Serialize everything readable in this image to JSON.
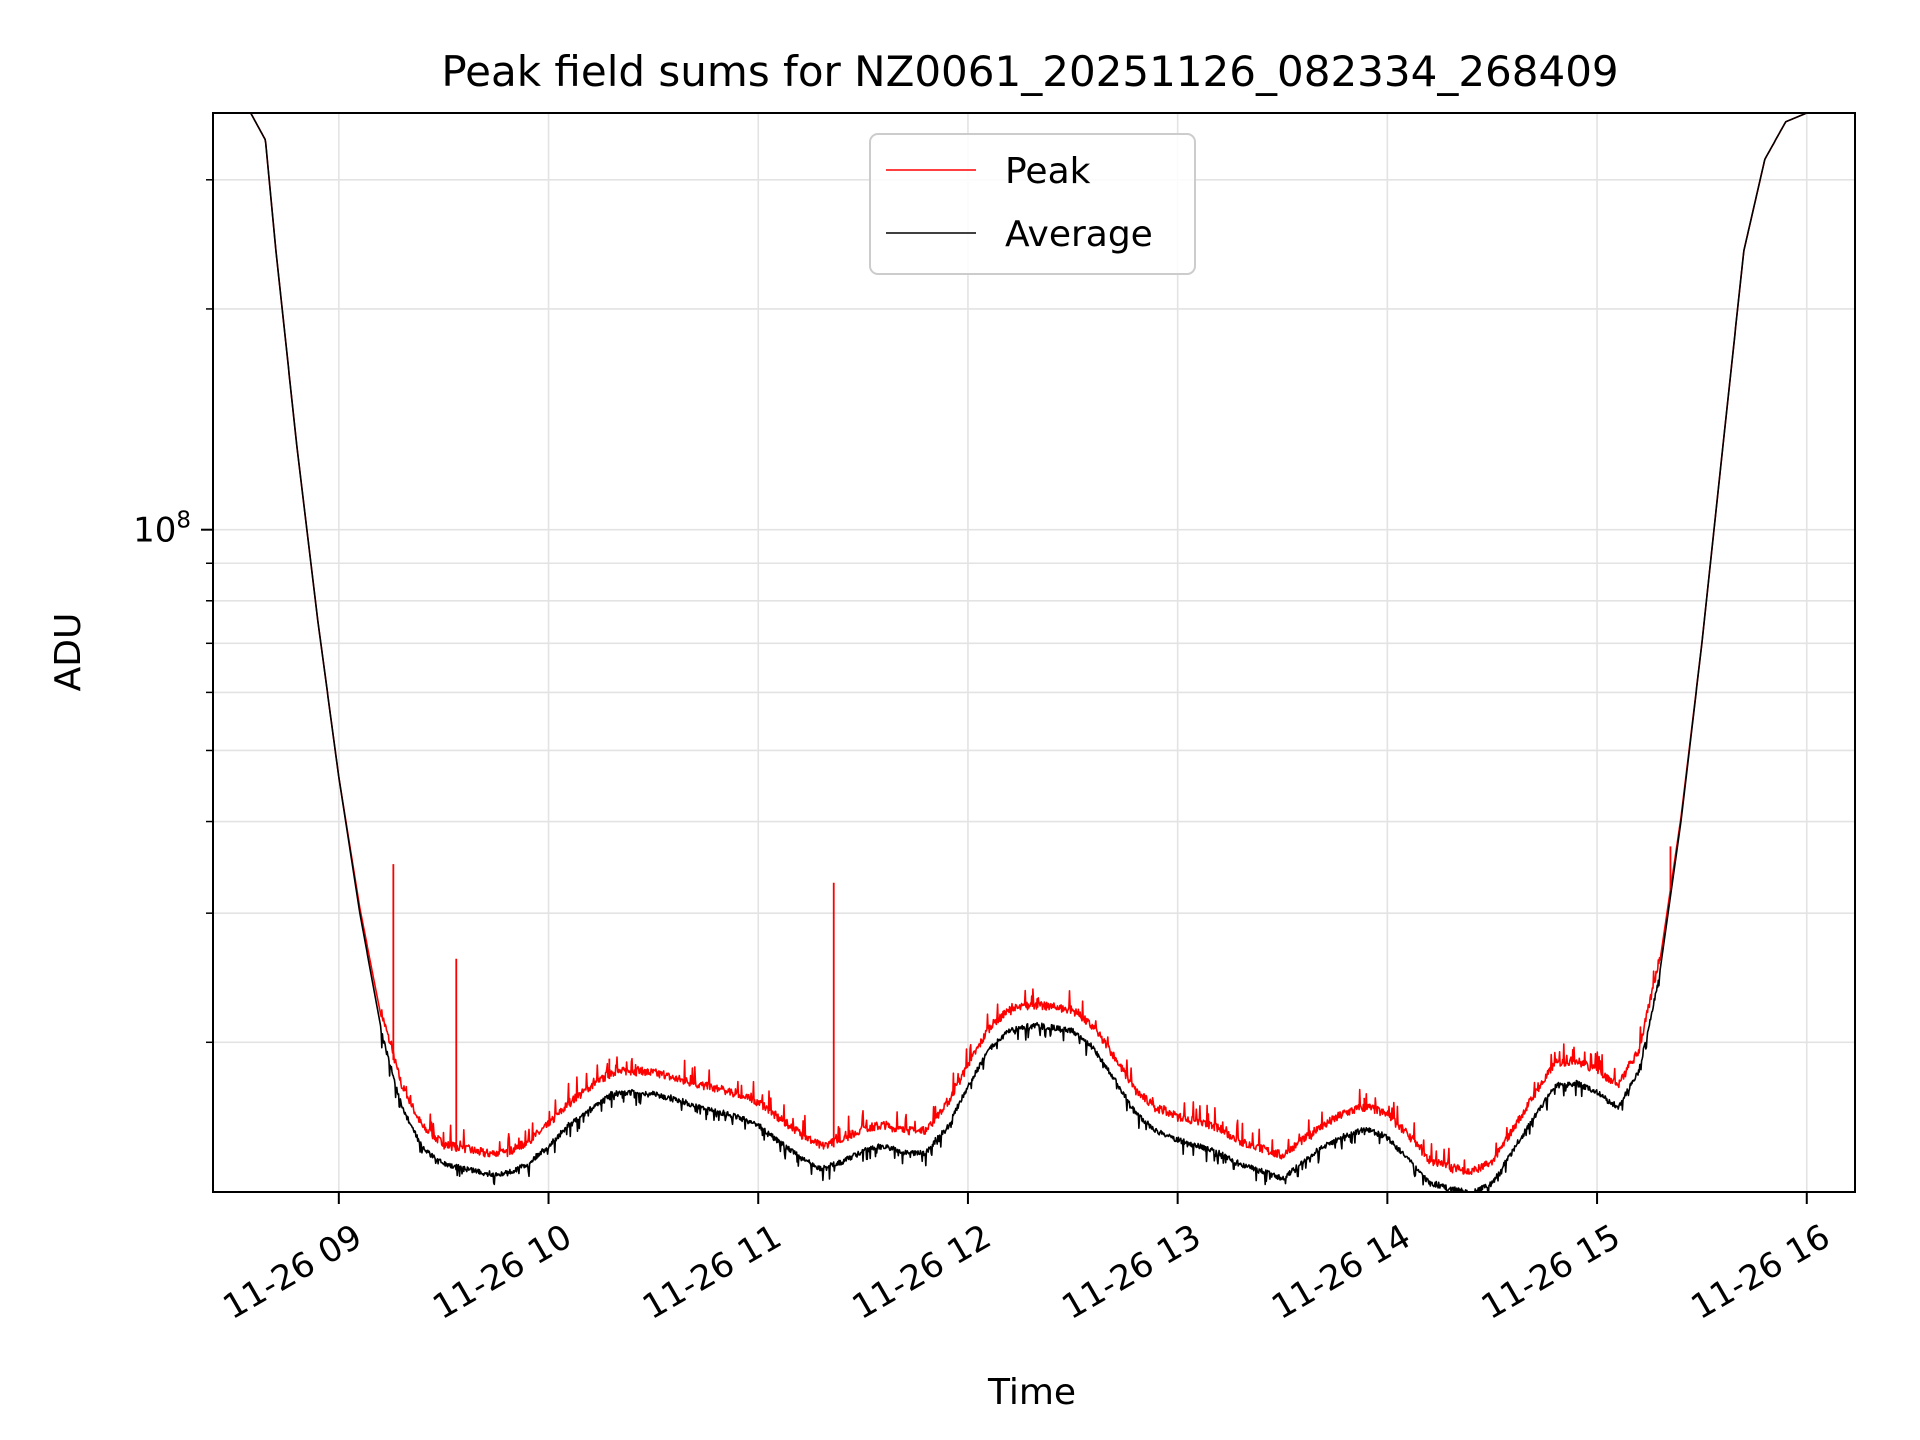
{
  "chart_data": {
    "type": "line",
    "title": "Peak field sums for NZ0061_20251126_082334_268409",
    "xlabel": "Time",
    "ylabel": "ADU",
    "y_scale": "log",
    "y_tick_label": {
      "base": "10",
      "exp": "8",
      "value": 100000000
    },
    "ylim": [
      12500000,
      370000000
    ],
    "xlim_hours": [
      8.4,
      16.23
    ],
    "x_ticks": [
      {
        "label": "11-26 09",
        "hour": 9
      },
      {
        "label": "11-26 10",
        "hour": 10
      },
      {
        "label": "11-26 11",
        "hour": 11
      },
      {
        "label": "11-26 12",
        "hour": 12
      },
      {
        "label": "11-26 13",
        "hour": 13
      },
      {
        "label": "11-26 14",
        "hour": 14
      },
      {
        "label": "11-26 15",
        "hour": 15
      },
      {
        "label": "11-26 16",
        "hour": 16
      }
    ],
    "y_minor_ticks": [
      20000000,
      30000000,
      40000000,
      50000000,
      60000000,
      70000000,
      80000000,
      90000000,
      200000000,
      300000000
    ],
    "grid": true,
    "legend": {
      "position": "top-center",
      "entries": [
        "Peak",
        "Average"
      ]
    },
    "series": [
      {
        "name": "Average",
        "color": "#000000",
        "x_hours": [
          8.58,
          8.65,
          8.7,
          8.8,
          8.9,
          9.0,
          9.1,
          9.2,
          9.3,
          9.4,
          9.5,
          9.6,
          9.7,
          9.8,
          9.9,
          10.0,
          10.1,
          10.2,
          10.3,
          10.4,
          10.5,
          10.6,
          10.7,
          10.8,
          10.9,
          11.0,
          11.1,
          11.2,
          11.3,
          11.4,
          11.5,
          11.6,
          11.7,
          11.8,
          11.9,
          12.0,
          12.1,
          12.2,
          12.3,
          12.4,
          12.5,
          12.6,
          12.7,
          12.8,
          12.9,
          13.0,
          13.1,
          13.2,
          13.3,
          13.4,
          13.5,
          13.6,
          13.7,
          13.8,
          13.9,
          14.0,
          14.1,
          14.2,
          14.3,
          14.4,
          14.5,
          14.6,
          14.7,
          14.8,
          14.9,
          15.0,
          15.1,
          15.2,
          15.3,
          15.4,
          15.5,
          15.6,
          15.7,
          15.8,
          15.9,
          16.0,
          16.0
        ],
        "values": [
          370000000,
          340000000,
          240000000,
          130000000,
          75000000,
          46000000,
          30000000,
          21000000,
          16500000,
          14500000,
          13800000,
          13600000,
          13400000,
          13400000,
          13800000,
          14600000,
          15600000,
          16400000,
          17200000,
          17300000,
          17200000,
          16900000,
          16600000,
          16300000,
          16000000,
          15600000,
          14800000,
          14100000,
          13600000,
          13900000,
          14400000,
          14600000,
          14300000,
          14300000,
          15500000,
          17600000,
          19800000,
          21000000,
          21300000,
          21200000,
          21000000,
          19800000,
          18000000,
          16200000,
          15300000,
          14900000,
          14600000,
          14300000,
          13800000,
          13500000,
          13200000,
          13900000,
          14600000,
          15100000,
          15400000,
          15000000,
          14000000,
          13000000,
          12800000,
          12600000,
          13000000,
          14400000,
          16000000,
          17600000,
          17800000,
          17300000,
          16500000,
          18500000,
          25000000,
          40000000,
          70000000,
          130000000,
          240000000,
          320000000,
          360000000,
          370000000,
          370000000
        ]
      },
      {
        "name": "Peak",
        "color": "#ff0000",
        "x_hours": [
          8.58,
          8.65,
          8.7,
          8.8,
          8.9,
          9.0,
          9.1,
          9.2,
          9.3,
          9.4,
          9.5,
          9.6,
          9.7,
          9.8,
          9.9,
          10.0,
          10.1,
          10.2,
          10.3,
          10.4,
          10.5,
          10.6,
          10.7,
          10.8,
          10.9,
          11.0,
          11.1,
          11.2,
          11.3,
          11.4,
          11.5,
          11.6,
          11.7,
          11.8,
          11.9,
          12.0,
          12.1,
          12.2,
          12.3,
          12.4,
          12.5,
          12.6,
          12.7,
          12.8,
          12.9,
          13.0,
          13.1,
          13.2,
          13.3,
          13.4,
          13.5,
          13.6,
          13.7,
          13.8,
          13.9,
          14.0,
          14.1,
          14.2,
          14.3,
          14.4,
          14.5,
          14.6,
          14.7,
          14.8,
          14.9,
          15.0,
          15.1,
          15.2,
          15.3,
          15.4,
          15.5,
          15.6,
          15.7,
          15.8,
          15.9,
          16.0,
          16.0
        ],
        "values": [
          370000000,
          340000000,
          240000000,
          130000000,
          75000000,
          46000000,
          30500000,
          21800000,
          17200000,
          15100000,
          14300000,
          14100000,
          13900000,
          13900000,
          14400000,
          15200000,
          16300000,
          17100000,
          17900000,
          18000000,
          17900000,
          17600000,
          17300000,
          17000000,
          16700000,
          16300000,
          15500000,
          14800000,
          14200000,
          14500000,
          15000000,
          15200000,
          14900000,
          14900000,
          16200000,
          18300000,
          20600000,
          21800000,
          22100000,
          22000000,
          21800000,
          20600000,
          18800000,
          16900000,
          16000000,
          15600000,
          15300000,
          15000000,
          14400000,
          14100000,
          13800000,
          14500000,
          15200000,
          15800000,
          16100000,
          15700000,
          14700000,
          13600000,
          13300000,
          13100000,
          13500000,
          15000000,
          16700000,
          18400000,
          18600000,
          18000000,
          17200000,
          19200000,
          25800000,
          40500000,
          70000000,
          130000000,
          240000000,
          320000000,
          360000000,
          370000000,
          370000000
        ],
        "spikes": [
          {
            "hour": 9.26,
            "value": 35000000
          },
          {
            "hour": 9.56,
            "value": 26000000
          },
          {
            "hour": 10.29,
            "value": 19000000
          },
          {
            "hour": 11.36,
            "value": 33000000
          },
          {
            "hour": 13.89,
            "value": 16800000
          },
          {
            "hour": 15.35,
            "value": 37000000
          }
        ]
      }
    ]
  }
}
